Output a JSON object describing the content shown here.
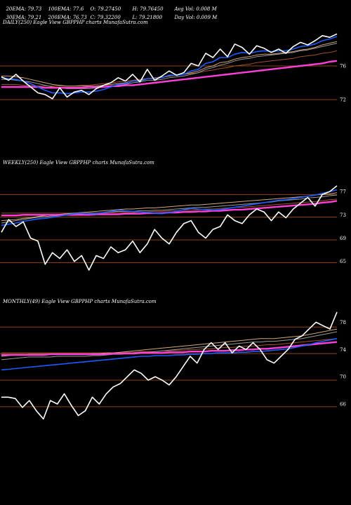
{
  "header": {
    "row1": [
      "20EMA: 79.73",
      "100EMA: 77.6",
      "O: 79.27450",
      "H: 79.76450",
      "Avg Vol: 0.008 M"
    ],
    "row2": [
      "30EMA: 79.21",
      "200EMA: 76.73",
      "C: 79.32200",
      "L: 79.21800",
      "Day Vol: 0.009 M"
    ]
  },
  "colors": {
    "price": "#ffffff",
    "ema_fast": "#1e5bff",
    "ema_magenta": "#ff3fd8",
    "ema_brown": "#a0522d",
    "ema_tan": "#d2a679",
    "ema_gray": "#9a9a9a",
    "grid": "#8b4513"
  },
  "chart_data": [
    {
      "type": "line",
      "title": "DAILY(250) Eagle  View  GBPPHP charts MunafaSutra.com",
      "ylim": [
        70.5,
        80.5
      ],
      "yticks": [
        "76",
        "72"
      ],
      "ytick_values": [
        76,
        72
      ],
      "grid_values": [
        76,
        72
      ],
      "series": [
        {
          "key": "price",
          "values": [
            74.7,
            74.3,
            75.0,
            74.2,
            73.5,
            72.8,
            72.6,
            72.1,
            73.4,
            72.3,
            72.9,
            73.1,
            72.6,
            73.3,
            73.7,
            74.0,
            74.6,
            74.2,
            75.0,
            74.1,
            75.6,
            74.3,
            74.8,
            75.4,
            74.9,
            75.2,
            76.3,
            76.0,
            77.5,
            77.0,
            78.0,
            77.1,
            78.6,
            78.2,
            77.4,
            78.4,
            78.1,
            77.6,
            78.0,
            77.5,
            78.3,
            78.8,
            78.5,
            79.0,
            79.6,
            79.4,
            79.8
          ]
        },
        {
          "key": "ema_fast",
          "values": [
            74.6,
            74.5,
            74.4,
            74.2,
            73.9,
            73.5,
            73.1,
            72.8,
            72.8,
            72.7,
            72.8,
            72.9,
            72.9,
            73.0,
            73.2,
            73.5,
            73.8,
            73.9,
            74.2,
            74.2,
            74.5,
            74.5,
            74.6,
            74.9,
            74.9,
            75.0,
            75.4,
            75.6,
            76.3,
            76.5,
            77.0,
            77.0,
            77.4,
            77.6,
            77.5,
            77.7,
            77.8,
            77.7,
            77.8,
            77.8,
            78.0,
            78.3,
            78.4,
            78.6,
            79.0,
            79.2,
            79.5
          ]
        },
        {
          "key": "ema_tan",
          "values": [
            74.8,
            74.8,
            74.7,
            74.6,
            74.4,
            74.2,
            74.0,
            73.8,
            73.7,
            73.6,
            73.6,
            73.6,
            73.6,
            73.6,
            73.7,
            73.8,
            73.9,
            74.0,
            74.2,
            74.3,
            74.5,
            74.5,
            74.6,
            74.8,
            74.9,
            75.0,
            75.2,
            75.4,
            75.8,
            76.0,
            76.4,
            76.5,
            76.8,
            77.0,
            77.1,
            77.3,
            77.4,
            77.4,
            77.5,
            77.6,
            77.7,
            77.9,
            78.0,
            78.2,
            78.5,
            78.7,
            78.9
          ]
        },
        {
          "key": "ema_gray",
          "values": [
            74.4,
            74.4,
            74.3,
            74.2,
            74.1,
            73.9,
            73.7,
            73.5,
            73.4,
            73.3,
            73.3,
            73.3,
            73.3,
            73.4,
            73.5,
            73.6,
            73.7,
            73.8,
            74.0,
            74.1,
            74.3,
            74.3,
            74.4,
            74.6,
            74.7,
            74.8,
            75.0,
            75.2,
            75.6,
            75.8,
            76.1,
            76.3,
            76.6,
            76.8,
            76.9,
            77.1,
            77.2,
            77.3,
            77.4,
            77.5,
            77.6,
            77.8,
            77.9,
            78.1,
            78.3,
            78.5,
            78.7
          ]
        },
        {
          "key": "ema_brown",
          "values": [
            73.8,
            73.8,
            73.8,
            73.7,
            73.7,
            73.6,
            73.6,
            73.6,
            73.6,
            73.6,
            73.6,
            73.7,
            73.7,
            73.8,
            73.9,
            74.0,
            74.1,
            74.2,
            74.3,
            74.4,
            74.5,
            74.6,
            74.7,
            74.8,
            74.9,
            75.0,
            75.1,
            75.2,
            75.4,
            75.5,
            75.7,
            75.8,
            76.0,
            76.1,
            76.2,
            76.4,
            76.5,
            76.6,
            76.7,
            76.8,
            76.9,
            77.1,
            77.2,
            77.3,
            77.5,
            77.6,
            77.8
          ]
        },
        {
          "key": "ema_magenta",
          "values": [
            73.5,
            73.5,
            73.5,
            73.5,
            73.5,
            73.5,
            73.4,
            73.4,
            73.4,
            73.4,
            73.4,
            73.4,
            73.5,
            73.5,
            73.5,
            73.6,
            73.6,
            73.7,
            73.7,
            73.8,
            73.9,
            74.0,
            74.1,
            74.2,
            74.3,
            74.4,
            74.5,
            74.6,
            74.7,
            74.8,
            74.9,
            75.0,
            75.1,
            75.2,
            75.3,
            75.4,
            75.5,
            75.6,
            75.7,
            75.8,
            75.9,
            76.0,
            76.1,
            76.2,
            76.3,
            76.5,
            76.6
          ]
        }
      ]
    },
    {
      "type": "line",
      "title": "WEEKLY(250) Eagle  View  GBPPHP charts MunafaSutra.com",
      "ylim": [
        60.5,
        81
      ],
      "yticks": [
        "77",
        "73",
        "69",
        "65"
      ],
      "ytick_values": [
        77,
        73,
        69,
        65
      ],
      "grid_values": [
        76.5,
        72.6,
        68.7,
        64.8
      ],
      "series": [
        {
          "key": "price",
          "values": [
            70.0,
            72.2,
            71.0,
            71.8,
            69.0,
            68.5,
            64.5,
            66.5,
            65.5,
            67.0,
            65.0,
            66.0,
            63.5,
            66.0,
            65.5,
            67.5,
            66.5,
            67.0,
            68.5,
            66.5,
            68.0,
            70.5,
            69.0,
            68.0,
            70.0,
            71.5,
            72.0,
            70.0,
            69.0,
            70.5,
            71.0,
            73.0,
            72.0,
            71.5,
            73.0,
            74.0,
            73.5,
            72.0,
            73.5,
            72.5,
            74.0,
            75.0,
            76.0,
            74.5,
            76.5,
            77.0,
            78.0
          ]
        },
        {
          "key": "ema_fast",
          "values": [
            71.2,
            71.4,
            71.6,
            71.9,
            72.1,
            72.3,
            72.4,
            72.6,
            72.8,
            73.0,
            73.2,
            73.3,
            73.2,
            73.2,
            73.4,
            73.6,
            73.8,
            73.7,
            73.6,
            73.5,
            73.4,
            73.3,
            73.2,
            73.4,
            73.6,
            73.9,
            74.1,
            74.0,
            73.9,
            73.8,
            73.9,
            74.1,
            74.3,
            74.5,
            74.7,
            74.9,
            75.1,
            75.3,
            75.5,
            75.6,
            75.8,
            76.0,
            76.2,
            76.4,
            76.7,
            77.0,
            77.3
          ]
        },
        {
          "key": "ema_tan",
          "values": [
            72.0,
            72.1,
            72.2,
            72.4,
            72.5,
            72.7,
            72.9,
            73.0,
            73.1,
            73.2,
            73.3,
            73.4,
            73.5,
            73.6,
            73.7,
            73.8,
            73.9,
            74.0,
            74.0,
            74.1,
            74.2,
            74.2,
            74.3,
            74.4,
            74.5,
            74.6,
            74.7,
            74.7,
            74.8,
            74.9,
            75.0,
            75.1,
            75.2,
            75.3,
            75.4,
            75.5,
            75.6,
            75.7,
            75.8,
            75.9,
            76.0,
            76.1,
            76.2,
            76.4,
            76.5,
            76.6,
            76.8
          ]
        },
        {
          "key": "ema_gray",
          "values": [
            71.6,
            71.8,
            72.0,
            72.2,
            72.4,
            72.6,
            72.7,
            72.8,
            72.9,
            73.0,
            73.1,
            73.2,
            73.3,
            73.3,
            73.4,
            73.5,
            73.6,
            73.6,
            73.6,
            73.7,
            73.7,
            73.8,
            73.8,
            73.9,
            74.0,
            74.1,
            74.2,
            74.3,
            74.3,
            74.4,
            74.5,
            74.6,
            74.7,
            74.8,
            74.9,
            75.0,
            75.1,
            75.2,
            75.4,
            75.5,
            75.6,
            75.7,
            75.9,
            76.0,
            76.1,
            76.3,
            76.4
          ]
        },
        {
          "key": "ema_brown",
          "values": [
            73.3,
            73.3,
            73.3,
            73.3,
            73.3,
            73.3,
            73.3,
            73.3,
            73.3,
            73.3,
            73.3,
            73.3,
            73.3,
            73.3,
            73.3,
            73.4,
            73.4,
            73.4,
            73.4,
            73.5,
            73.5,
            73.6,
            73.6,
            73.7,
            73.7,
            73.8,
            73.8,
            73.9,
            74.0,
            74.0,
            74.1,
            74.2,
            74.3,
            74.3,
            74.4,
            74.5,
            74.6,
            74.7,
            74.8,
            74.9,
            75.0,
            75.1,
            75.2,
            75.3,
            75.4,
            75.6,
            75.7
          ]
        },
        {
          "key": "ema_magenta",
          "values": [
            72.9,
            72.9,
            72.9,
            73.0,
            73.0,
            73.0,
            73.0,
            73.0,
            73.0,
            73.0,
            73.0,
            73.0,
            73.0,
            73.1,
            73.1,
            73.1,
            73.1,
            73.2,
            73.2,
            73.2,
            73.3,
            73.3,
            73.3,
            73.4,
            73.4,
            73.5,
            73.5,
            73.6,
            73.6,
            73.7,
            73.7,
            73.8,
            73.9,
            73.9,
            74.0,
            74.1,
            74.2,
            74.3,
            74.4,
            74.5,
            74.6,
            74.7,
            74.8,
            74.9,
            75.1,
            75.2,
            75.4
          ]
        }
      ]
    },
    {
      "type": "line",
      "title": "MONTHLY(49) Eagle  View  GBPPHP charts MunafaSutra.com",
      "ylim": [
        62.5,
        80
      ],
      "yticks": [
        "78",
        "74",
        "70",
        "66"
      ],
      "ytick_values": [
        78,
        74,
        70,
        66
      ],
      "grid_values": [
        77.3,
        73.4,
        69.5,
        65.6
      ],
      "series": [
        {
          "key": "price",
          "values": [
            67.0,
            67.0,
            66.8,
            65.5,
            66.5,
            65.0,
            63.8,
            66.5,
            66.0,
            67.5,
            65.8,
            64.3,
            65.0,
            67.0,
            66.0,
            67.5,
            68.5,
            69.0,
            70.0,
            71.0,
            70.5,
            69.5,
            70.0,
            69.5,
            68.8,
            70.0,
            71.5,
            73.0,
            72.0,
            74.0,
            75.0,
            74.0,
            75.0,
            73.5,
            74.5,
            74.0,
            75.0,
            74.0,
            72.5,
            72.0,
            73.0,
            74.0,
            75.5,
            76.0,
            77.0,
            78.0,
            77.5,
            77.0,
            79.5
          ]
        },
        {
          "key": "ema_fast",
          "values": [
            71.0,
            71.1,
            71.2,
            71.3,
            71.4,
            71.5,
            71.6,
            71.7,
            71.8,
            71.9,
            72.0,
            72.1,
            72.2,
            72.3,
            72.4,
            72.5,
            72.6,
            72.7,
            72.8,
            72.9,
            73.0,
            73.0,
            73.1,
            73.1,
            73.1,
            73.2,
            73.2,
            73.3,
            73.3,
            73.4,
            73.4,
            73.5,
            73.5,
            73.5,
            73.6,
            73.6,
            73.7,
            73.7,
            73.8,
            73.9,
            74.0,
            74.1,
            74.3,
            74.5,
            74.7,
            75.0,
            75.2,
            75.4,
            75.6
          ]
        },
        {
          "key": "ema_tan",
          "values": [
            73.0,
            73.1,
            73.2,
            73.2,
            73.3,
            73.3,
            73.3,
            73.3,
            73.3,
            73.3,
            73.3,
            73.3,
            73.3,
            73.4,
            73.4,
            73.5,
            73.5,
            73.6,
            73.7,
            73.8,
            73.9,
            74.0,
            74.1,
            74.2,
            74.3,
            74.4,
            74.5,
            74.6,
            74.7,
            74.8,
            74.9,
            75.0,
            75.1,
            75.2,
            75.3,
            75.4,
            75.5,
            75.6,
            75.6,
            75.6,
            75.7,
            75.8,
            75.9,
            76.0,
            76.2,
            76.4,
            76.6,
            76.8,
            77.0
          ]
        },
        {
          "key": "ema_gray",
          "values": [
            72.5,
            72.6,
            72.7,
            72.8,
            72.9,
            72.9,
            72.9,
            72.9,
            73.0,
            73.0,
            73.0,
            73.0,
            73.0,
            73.1,
            73.1,
            73.2,
            73.3,
            73.3,
            73.4,
            73.5,
            73.6,
            73.6,
            73.7,
            73.8,
            73.9,
            74.0,
            74.1,
            74.2,
            74.3,
            74.4,
            74.5,
            74.6,
            74.7,
            74.8,
            74.9,
            75.0,
            75.1,
            75.1,
            75.2,
            75.2,
            75.3,
            75.4,
            75.5,
            75.6,
            75.8,
            76.0,
            76.2,
            76.4,
            76.6
          ]
        },
        {
          "key": "ema_brown",
          "values": [
            73.5,
            73.5,
            73.5,
            73.5,
            73.5,
            73.5,
            73.5,
            73.5,
            73.5,
            73.5,
            73.5,
            73.5,
            73.5,
            73.5,
            73.5,
            73.5,
            73.5,
            73.6,
            73.6,
            73.6,
            73.7,
            73.7,
            73.7,
            73.8,
            73.8,
            73.9,
            73.9,
            74.0,
            74.0,
            74.1,
            74.1,
            74.2,
            74.3,
            74.3,
            74.4,
            74.5,
            74.5,
            74.6,
            74.7,
            74.7,
            74.8,
            74.9,
            75.0,
            75.1,
            75.2,
            75.3,
            75.4,
            75.5,
            75.6
          ]
        },
        {
          "key": "ema_magenta",
          "values": [
            73.2,
            73.2,
            73.2,
            73.2,
            73.2,
            73.2,
            73.2,
            73.3,
            73.3,
            73.3,
            73.3,
            73.3,
            73.3,
            73.3,
            73.3,
            73.3,
            73.4,
            73.4,
            73.4,
            73.4,
            73.5,
            73.5,
            73.5,
            73.5,
            73.6,
            73.6,
            73.6,
            73.7,
            73.7,
            73.7,
            73.8,
            73.8,
            73.8,
            73.9,
            73.9,
            74.0,
            74.0,
            74.1,
            74.1,
            74.2,
            74.3,
            74.4,
            74.5,
            74.6,
            74.7,
            74.8,
            74.9,
            75.0,
            75.1
          ]
        }
      ]
    }
  ]
}
